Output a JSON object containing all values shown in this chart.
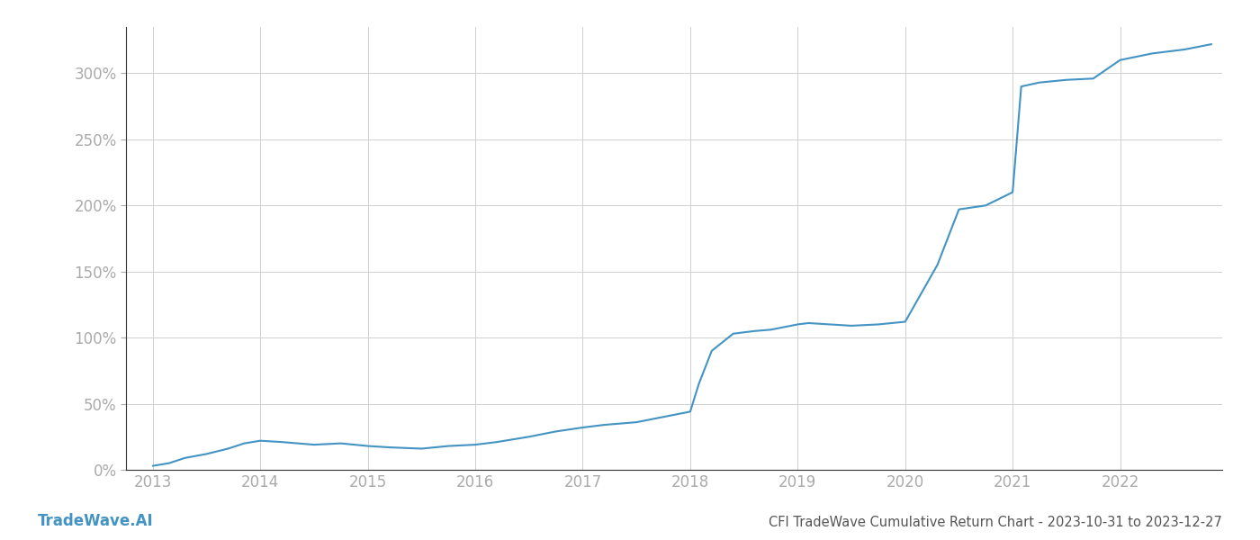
{
  "title": "CFI TradeWave Cumulative Return Chart - 2023-10-31 to 2023-12-27",
  "watermark": "TradeWave.AI",
  "line_color": "#4393c3",
  "line_width": 1.5,
  "background_color": "#ffffff",
  "grid_color": "#d0d0d0",
  "x_years": [
    2013,
    2014,
    2015,
    2016,
    2017,
    2018,
    2019,
    2020,
    2021,
    2022
  ],
  "x_data": [
    2013.0,
    2013.15,
    2013.3,
    2013.5,
    2013.7,
    2013.85,
    2014.0,
    2014.2,
    2014.5,
    2014.75,
    2015.0,
    2015.2,
    2015.5,
    2015.75,
    2016.0,
    2016.2,
    2016.5,
    2016.75,
    2017.0,
    2017.2,
    2017.5,
    2017.75,
    2018.0,
    2018.08,
    2018.2,
    2018.4,
    2018.6,
    2018.75,
    2019.0,
    2019.1,
    2019.3,
    2019.5,
    2019.75,
    2020.0,
    2020.3,
    2020.5,
    2020.75,
    2021.0,
    2021.08,
    2021.25,
    2021.5,
    2021.75,
    2022.0,
    2022.3,
    2022.6,
    2022.85
  ],
  "y_data": [
    3,
    5,
    9,
    12,
    16,
    20,
    22,
    21,
    19,
    20,
    18,
    17,
    16,
    18,
    19,
    21,
    25,
    29,
    32,
    34,
    36,
    40,
    44,
    65,
    90,
    103,
    105,
    106,
    110,
    111,
    110,
    109,
    110,
    112,
    155,
    197,
    200,
    210,
    290,
    293,
    295,
    296,
    310,
    315,
    318,
    322
  ],
  "ylim": [
    0,
    335
  ],
  "yticks": [
    0,
    50,
    100,
    150,
    200,
    250,
    300
  ],
  "xlim_left": 2012.75,
  "xlim_right": 2022.95,
  "tick_label_color": "#aaaaaa",
  "axis_label_fontsize": 12,
  "title_fontsize": 10.5,
  "watermark_fontsize": 12
}
